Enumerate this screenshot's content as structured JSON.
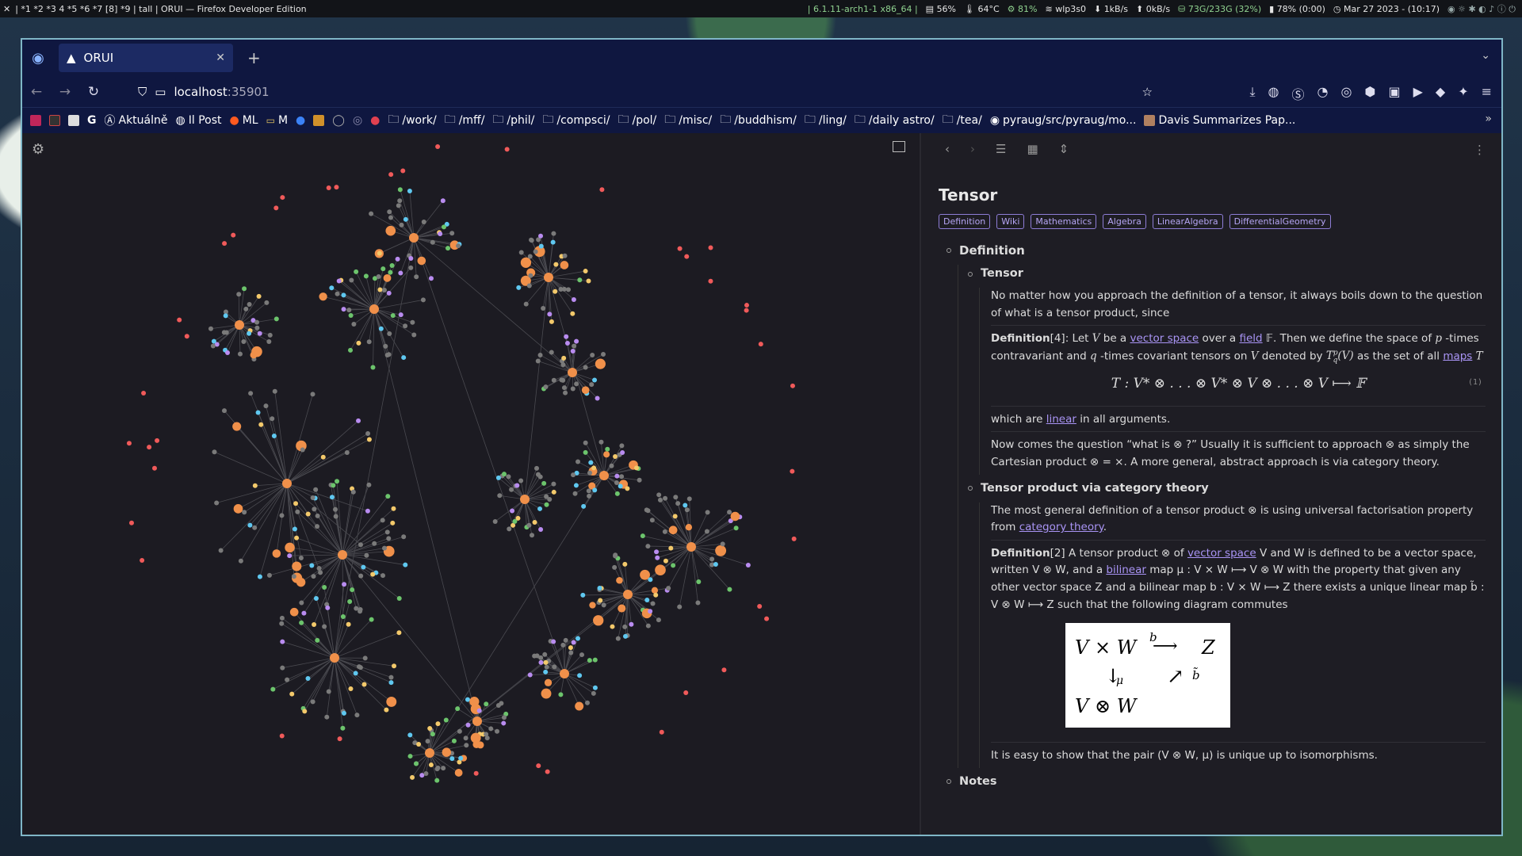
{
  "topbar": {
    "workspaces": "| *1 *2 *3 4 *5 *6 *7 [8] *9 | tall | ORUI — Firefox Developer Edition",
    "kernel": "| 6.1.11-arch1-1 x86_64 |",
    "mem": "56%",
    "temp": "64°C",
    "cpu": "81%",
    "wifi": "wlp3s0",
    "down": "1kB/s",
    "up": "0kB/s",
    "disk": "73G/233G (32%)",
    "battery": "78% (0:00)",
    "datetime": "Mar 27 2023 - (10:17)"
  },
  "browser": {
    "tab_title": "ORUI",
    "url_host": "localhost",
    "url_port": ":35901",
    "bookmarks": [
      "Aktuálně",
      "Il Post",
      "ML",
      "M",
      "/work/",
      "/mff/",
      "/phil/",
      "/compsci/",
      "/pol/",
      "/misc/",
      "/buddhism/",
      "/ling/",
      "/daily astro/",
      "/tea/",
      "pyraug/src/pyraug/mo...",
      "Davis Summarizes Pap..."
    ]
  },
  "doc": {
    "title": "Tensor",
    "tags": [
      "Definition",
      "Wiki",
      "Mathematics",
      "Algebra",
      "LinearAlgebra",
      "DifferentialGeometry"
    ],
    "section1": "Definition",
    "sub1": "Tensor",
    "p1": "No matter how you approach the definition of a tensor, it always boils down to the question of what is a tensor product, since",
    "def1_label": "Definition",
    "def1_ref": "[4]",
    "def1_a": ": Let ",
    "def1_V": "V",
    "def1_b": " be a ",
    "def1_link_vs": "vector space",
    "def1_c": " over a ",
    "def1_link_field": "field",
    "def1_d": " 𝔽. Then we define the space of ",
    "def1_p": "p",
    "def1_e": " -times contravariant and ",
    "def1_q": "q",
    "def1_f": " -times covariant tensors on ",
    "def1_g": " denoted by ",
    "def1_T": "T",
    "def1_h": " as the set of all ",
    "def1_link_maps": "maps",
    "def1_i": "T",
    "eq1": "T : V* ⊗ . . . ⊗ V* ⊗ V ⊗ . . . ⊗ V ⟼ 𝔽",
    "eq1_num": "(1)",
    "p2_a": "which are ",
    "p2_link": "linear",
    "p2_b": " in all arguments.",
    "p3": "Now comes the question “what is ⊗ ?” Usually it is sufficient to approach ⊗ as simply the Cartesian product ⊗ = ×. A more general, abstract approach is via category theory.",
    "sub2": "Tensor product via category theory",
    "p4_a": "The most general definition of a tensor product ⊗ is using universal factorisation property from ",
    "p4_link": "category theory",
    "p4_b": ".",
    "def2_label": "Definition",
    "def2_ref": "[2]",
    "def2_a": " A tensor product ⊗ of ",
    "def2_link_vs": "vector space",
    "def2_b": " V and W is defined to be a vector space, written V ⊗ W, and a ",
    "def2_link_bilinear": "bilinear",
    "def2_c": " map μ : V × W ⟼ V ⊗ W with the property that given any other vector space Z and a bilinear map b : V × W ⟼ Z there exists a unique linear map b̃ : V ⊗ W ⟼ Z such that the following diagram commutes",
    "diagram": {
      "tl": "V × W",
      "tr": "Z",
      "bl": "V ⊗ W",
      "b": "b",
      "mu": "μ",
      "bt": "b̃"
    },
    "p5": "It is easy to show that the pair (V ⊗ W, μ) is unique up to isomorphisms.",
    "section2": "Notes"
  },
  "colors": {
    "orange": "#f0904a",
    "grey": "#7a7a7a",
    "blue": "#5fc8f0",
    "purple": "#b98cf0",
    "green": "#6cc46c",
    "yellow": "#f3c96b",
    "red": "#f05a5a",
    "edge": "#4a4a50"
  }
}
